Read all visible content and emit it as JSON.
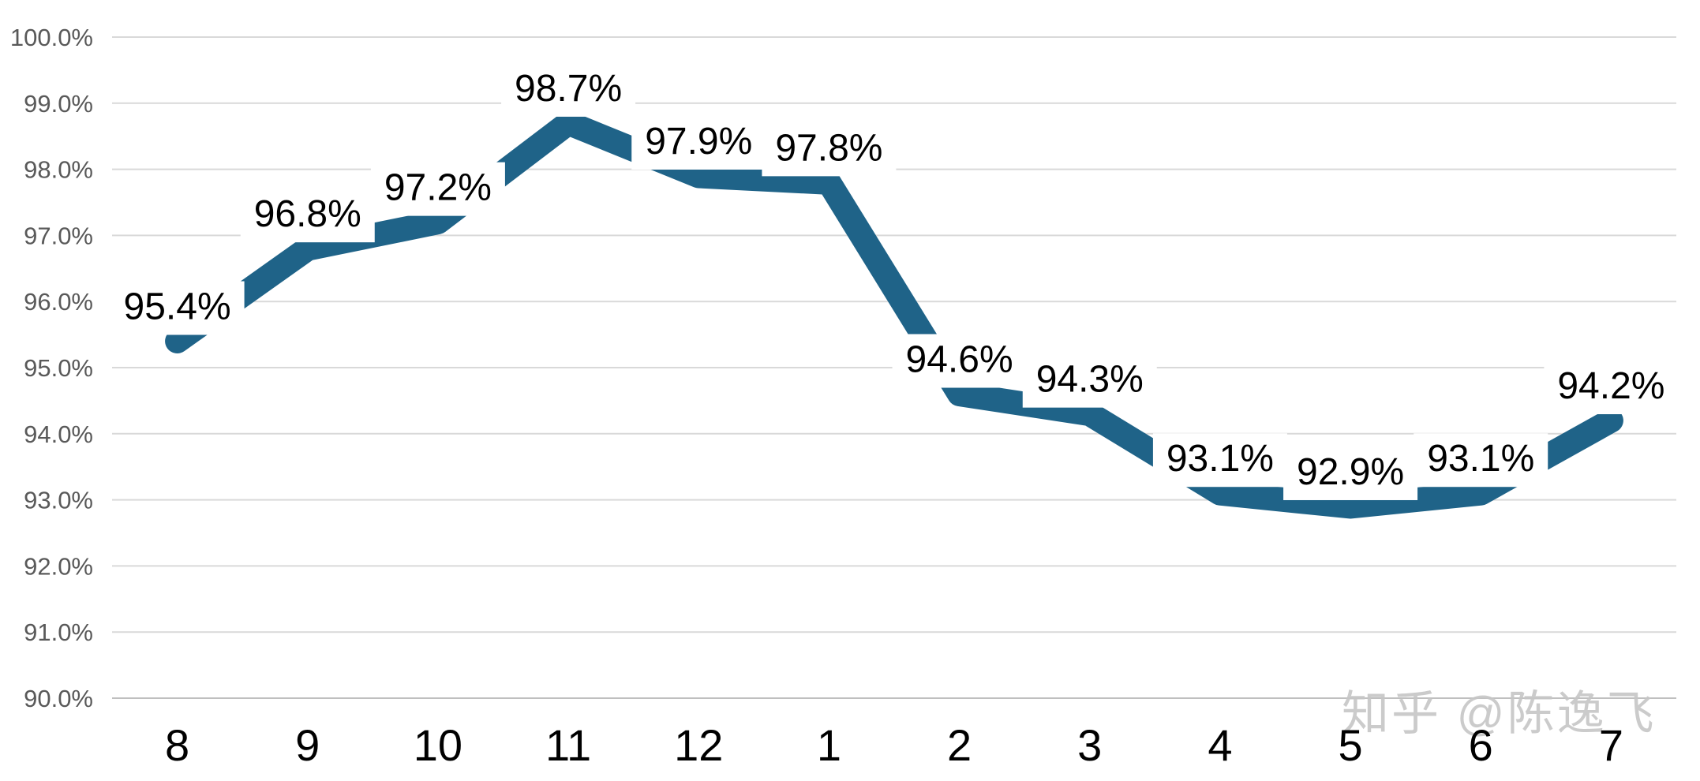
{
  "chart_data": {
    "type": "line",
    "categories": [
      "8",
      "9",
      "10",
      "11",
      "12",
      "1",
      "2",
      "3",
      "4",
      "5",
      "6",
      "7"
    ],
    "values": [
      95.4,
      96.8,
      97.2,
      98.7,
      97.9,
      97.8,
      94.6,
      94.3,
      93.1,
      92.9,
      93.1,
      94.2
    ],
    "point_labels": [
      "95.4%",
      "96.8%",
      "97.2%",
      "98.7%",
      "97.9%",
      "97.8%",
      "94.6%",
      "94.3%",
      "93.1%",
      "92.9%",
      "93.1%",
      "94.2%"
    ],
    "title": "",
    "xlabel": "",
    "ylabel": "",
    "ylim": [
      90,
      100
    ],
    "ytick_step": 1.0,
    "ytick_labels": [
      "90.0%",
      "91.0%",
      "92.0%",
      "93.0%",
      "94.0%",
      "95.0%",
      "96.0%",
      "97.0%",
      "98.0%",
      "99.0%",
      "100.0%"
    ],
    "grid": true,
    "legend": "none",
    "colors": {
      "line": "#1F6388",
      "gridline": "#D9D9D9",
      "baseline": "#BFBFBF",
      "ytick_text": "#595959",
      "xtick_text": "#000000",
      "point_label_text": "#000000",
      "point_label_bg": "#FFFFFF",
      "background": "#FFFFFF"
    }
  },
  "watermark": {
    "text": "知乎 @陈逸飞",
    "color": "#C6C6C6"
  }
}
